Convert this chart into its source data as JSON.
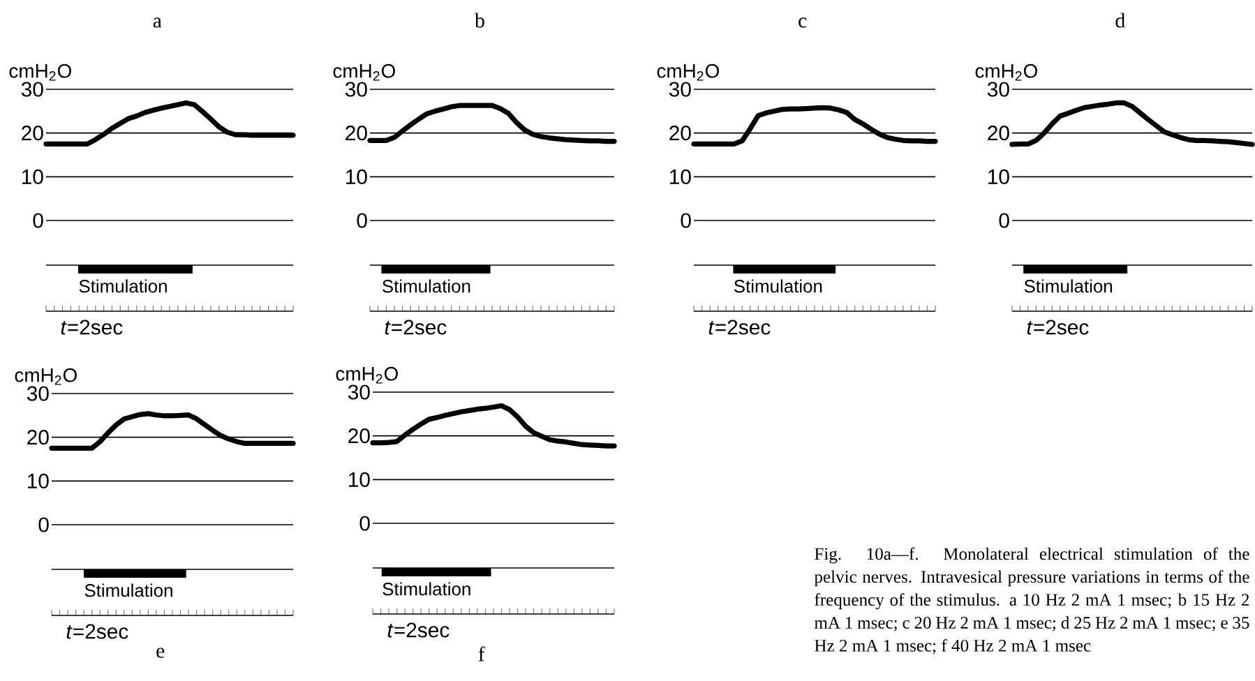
{
  "chart_data": [
    {
      "type": "line",
      "title": "a",
      "ylabel": "cmH$_{2}$O",
      "color": "#000000",
      "grid": "y",
      "tick_labels": "y",
      "ylim": [
        0,
        30
      ],
      "yticks": [
        0,
        10,
        20,
        30
      ],
      "categories": [
        null,
        null,
        null,
        null,
        null,
        null,
        null,
        null,
        null,
        null,
        null,
        null,
        null,
        null,
        null,
        null,
        null,
        null,
        null,
        null,
        null,
        null,
        null,
        null,
        null,
        null,
        null,
        null,
        null,
        null,
        null
      ],
      "values": [
        17.5,
        17.5,
        17.5,
        17.5,
        17.5,
        17.5,
        18.5,
        19.7,
        21.1,
        22.2,
        23.3,
        23.9,
        24.7,
        25.2,
        25.7,
        26.1,
        26.5,
        26.9,
        26.5,
        24.9,
        23.2,
        21.4,
        20.2,
        19.6,
        19.6,
        19.5,
        19.5,
        19.5,
        19.5,
        19.5,
        19.5
      ],
      "annotations": [
        "Stimulation",
        "*t*=2sec"
      ]
    },
    {
      "type": "line",
      "title": "b",
      "ylabel": "cmH$_{2}$O",
      "color": "#000000",
      "grid": "y",
      "tick_labels": "y",
      "ylim": [
        0,
        30
      ],
      "yticks": [
        0,
        10,
        20,
        30
      ],
      "categories": [
        null,
        null,
        null,
        null,
        null,
        null,
        null,
        null,
        null,
        null,
        null,
        null,
        null,
        null,
        null,
        null,
        null,
        null,
        null,
        null,
        null,
        null,
        null,
        null,
        null,
        null,
        null,
        null,
        null,
        null,
        null
      ],
      "values": [
        18.3,
        18.3,
        18.3,
        19,
        20.5,
        21.9,
        23.2,
        24.4,
        25,
        25.5,
        26,
        26.3,
        26.3,
        26.3,
        26.3,
        26.3,
        25.6,
        24.5,
        22.4,
        20.7,
        19.7,
        19.2,
        18.9,
        18.7,
        18.5,
        18.4,
        18.3,
        18.2,
        18.2,
        18.1,
        18.1
      ],
      "annotations": [
        "Stimulation",
        "*t*=2sec"
      ]
    },
    {
      "type": "line",
      "title": "c",
      "ylabel": "cmH$_{2}$O",
      "color": "#000000",
      "grid": "y",
      "tick_labels": "y",
      "ylim": [
        0,
        30
      ],
      "yticks": [
        0,
        10,
        20,
        30
      ],
      "categories": [
        null,
        null,
        null,
        null,
        null,
        null,
        null,
        null,
        null,
        null,
        null,
        null,
        null,
        null,
        null,
        null,
        null,
        null,
        null,
        null,
        null,
        null,
        null,
        null,
        null,
        null,
        null,
        null,
        null,
        null,
        null
      ],
      "values": [
        17.5,
        17.5,
        17.5,
        17.5,
        17.5,
        17.5,
        18.2,
        21,
        24,
        24.6,
        25,
        25.4,
        25.5,
        25.5,
        25.6,
        25.7,
        25.8,
        25.7,
        25.3,
        24.7,
        23.1,
        22.1,
        20.9,
        19.8,
        19,
        18.6,
        18.3,
        18.2,
        18.2,
        18.1,
        18.1
      ],
      "annotations": [
        "Stimulation",
        "*t*=2sec"
      ]
    },
    {
      "type": "line",
      "title": "d",
      "ylabel": "cmH$_{2}$O",
      "color": "#000000",
      "grid": "y",
      "tick_labels": "y",
      "ylim": [
        0,
        30
      ],
      "yticks": [
        0,
        10,
        20,
        30
      ],
      "categories": [
        null,
        null,
        null,
        null,
        null,
        null,
        null,
        null,
        null,
        null,
        null,
        null,
        null,
        null,
        null,
        null,
        null,
        null,
        null,
        null,
        null,
        null,
        null,
        null,
        null,
        null,
        null,
        null,
        null,
        null,
        null
      ],
      "values": [
        17.4,
        17.5,
        17.5,
        18.3,
        20,
        22.1,
        23.9,
        24.5,
        25.2,
        25.8,
        26.1,
        26.4,
        26.6,
        26.9,
        26.9,
        26.1,
        24.6,
        23.1,
        21.7,
        20.3,
        19.6,
        19,
        18.5,
        18.3,
        18.3,
        18.2,
        18.1,
        18,
        17.8,
        17.6,
        17.4
      ],
      "annotations": [
        "Stimulation",
        "*t*=2sec"
      ]
    },
    {
      "type": "line",
      "title": "e",
      "ylabel": "cmH$_{2}$O",
      "color": "#000000",
      "grid": "y",
      "tick_labels": "y",
      "ylim": [
        0,
        30
      ],
      "yticks": [
        0,
        10,
        20,
        30
      ],
      "categories": [
        null,
        null,
        null,
        null,
        null,
        null,
        null,
        null,
        null,
        null,
        null,
        null,
        null,
        null,
        null,
        null,
        null,
        null,
        null,
        null,
        null,
        null,
        null,
        null,
        null,
        null,
        null,
        null,
        null,
        null,
        null
      ],
      "values": [
        17.5,
        17.5,
        17.5,
        17.5,
        17.5,
        17.5,
        19,
        21,
        22.8,
        24.2,
        24.7,
        25.2,
        25.4,
        25.1,
        24.9,
        24.9,
        25,
        25.1,
        24.2,
        22.9,
        21.6,
        20.4,
        19.6,
        19,
        18.6,
        18.6,
        18.6,
        18.6,
        18.6,
        18.6,
        18.6
      ],
      "annotations": [
        "Stimulation",
        "*t*=2sec"
      ]
    },
    {
      "type": "line",
      "title": "f",
      "ylabel": "cmH$_{2}$O",
      "color": "#000000",
      "grid": "y",
      "tick_labels": "y",
      "ylim": [
        0,
        30
      ],
      "yticks": [
        0,
        10,
        20,
        30
      ],
      "categories": [
        null,
        null,
        null,
        null,
        null,
        null,
        null,
        null,
        null,
        null,
        null,
        null,
        null,
        null,
        null,
        null,
        null,
        null,
        null,
        null,
        null,
        null,
        null,
        null,
        null,
        null,
        null,
        null,
        null,
        null,
        null
      ],
      "values": [
        18.4,
        18.4,
        18.5,
        18.7,
        20.2,
        21.5,
        22.7,
        23.8,
        24.2,
        24.7,
        25.1,
        25.5,
        25.8,
        26.1,
        26.3,
        26.6,
        26.9,
        26,
        24.3,
        22.2,
        20.7,
        19.9,
        19.1,
        18.8,
        18.6,
        18.3,
        18,
        17.9,
        17.8,
        17.7,
        17.7
      ],
      "annotations": [
        "Stimulation",
        "*t*=2sec"
      ]
    },
    {
      "type": "other",
      "annotations": [
        "Fig. 10a—f. Monolateral electrical stimulation of the pelvic nerves. Intravesical pressure variations in terms of the frequency of the stimulus. a 10 Hz 2 mA 1 msec; b 15 Hz 2 mA 1 msec; c 20 Hz 2 mA 1 msec; d 25 Hz 2 mA 1 msec; e 35 Hz 2 mA 1 msec; f 40 Hz 2 mA 1 msec"
      ]
    }
  ]
}
